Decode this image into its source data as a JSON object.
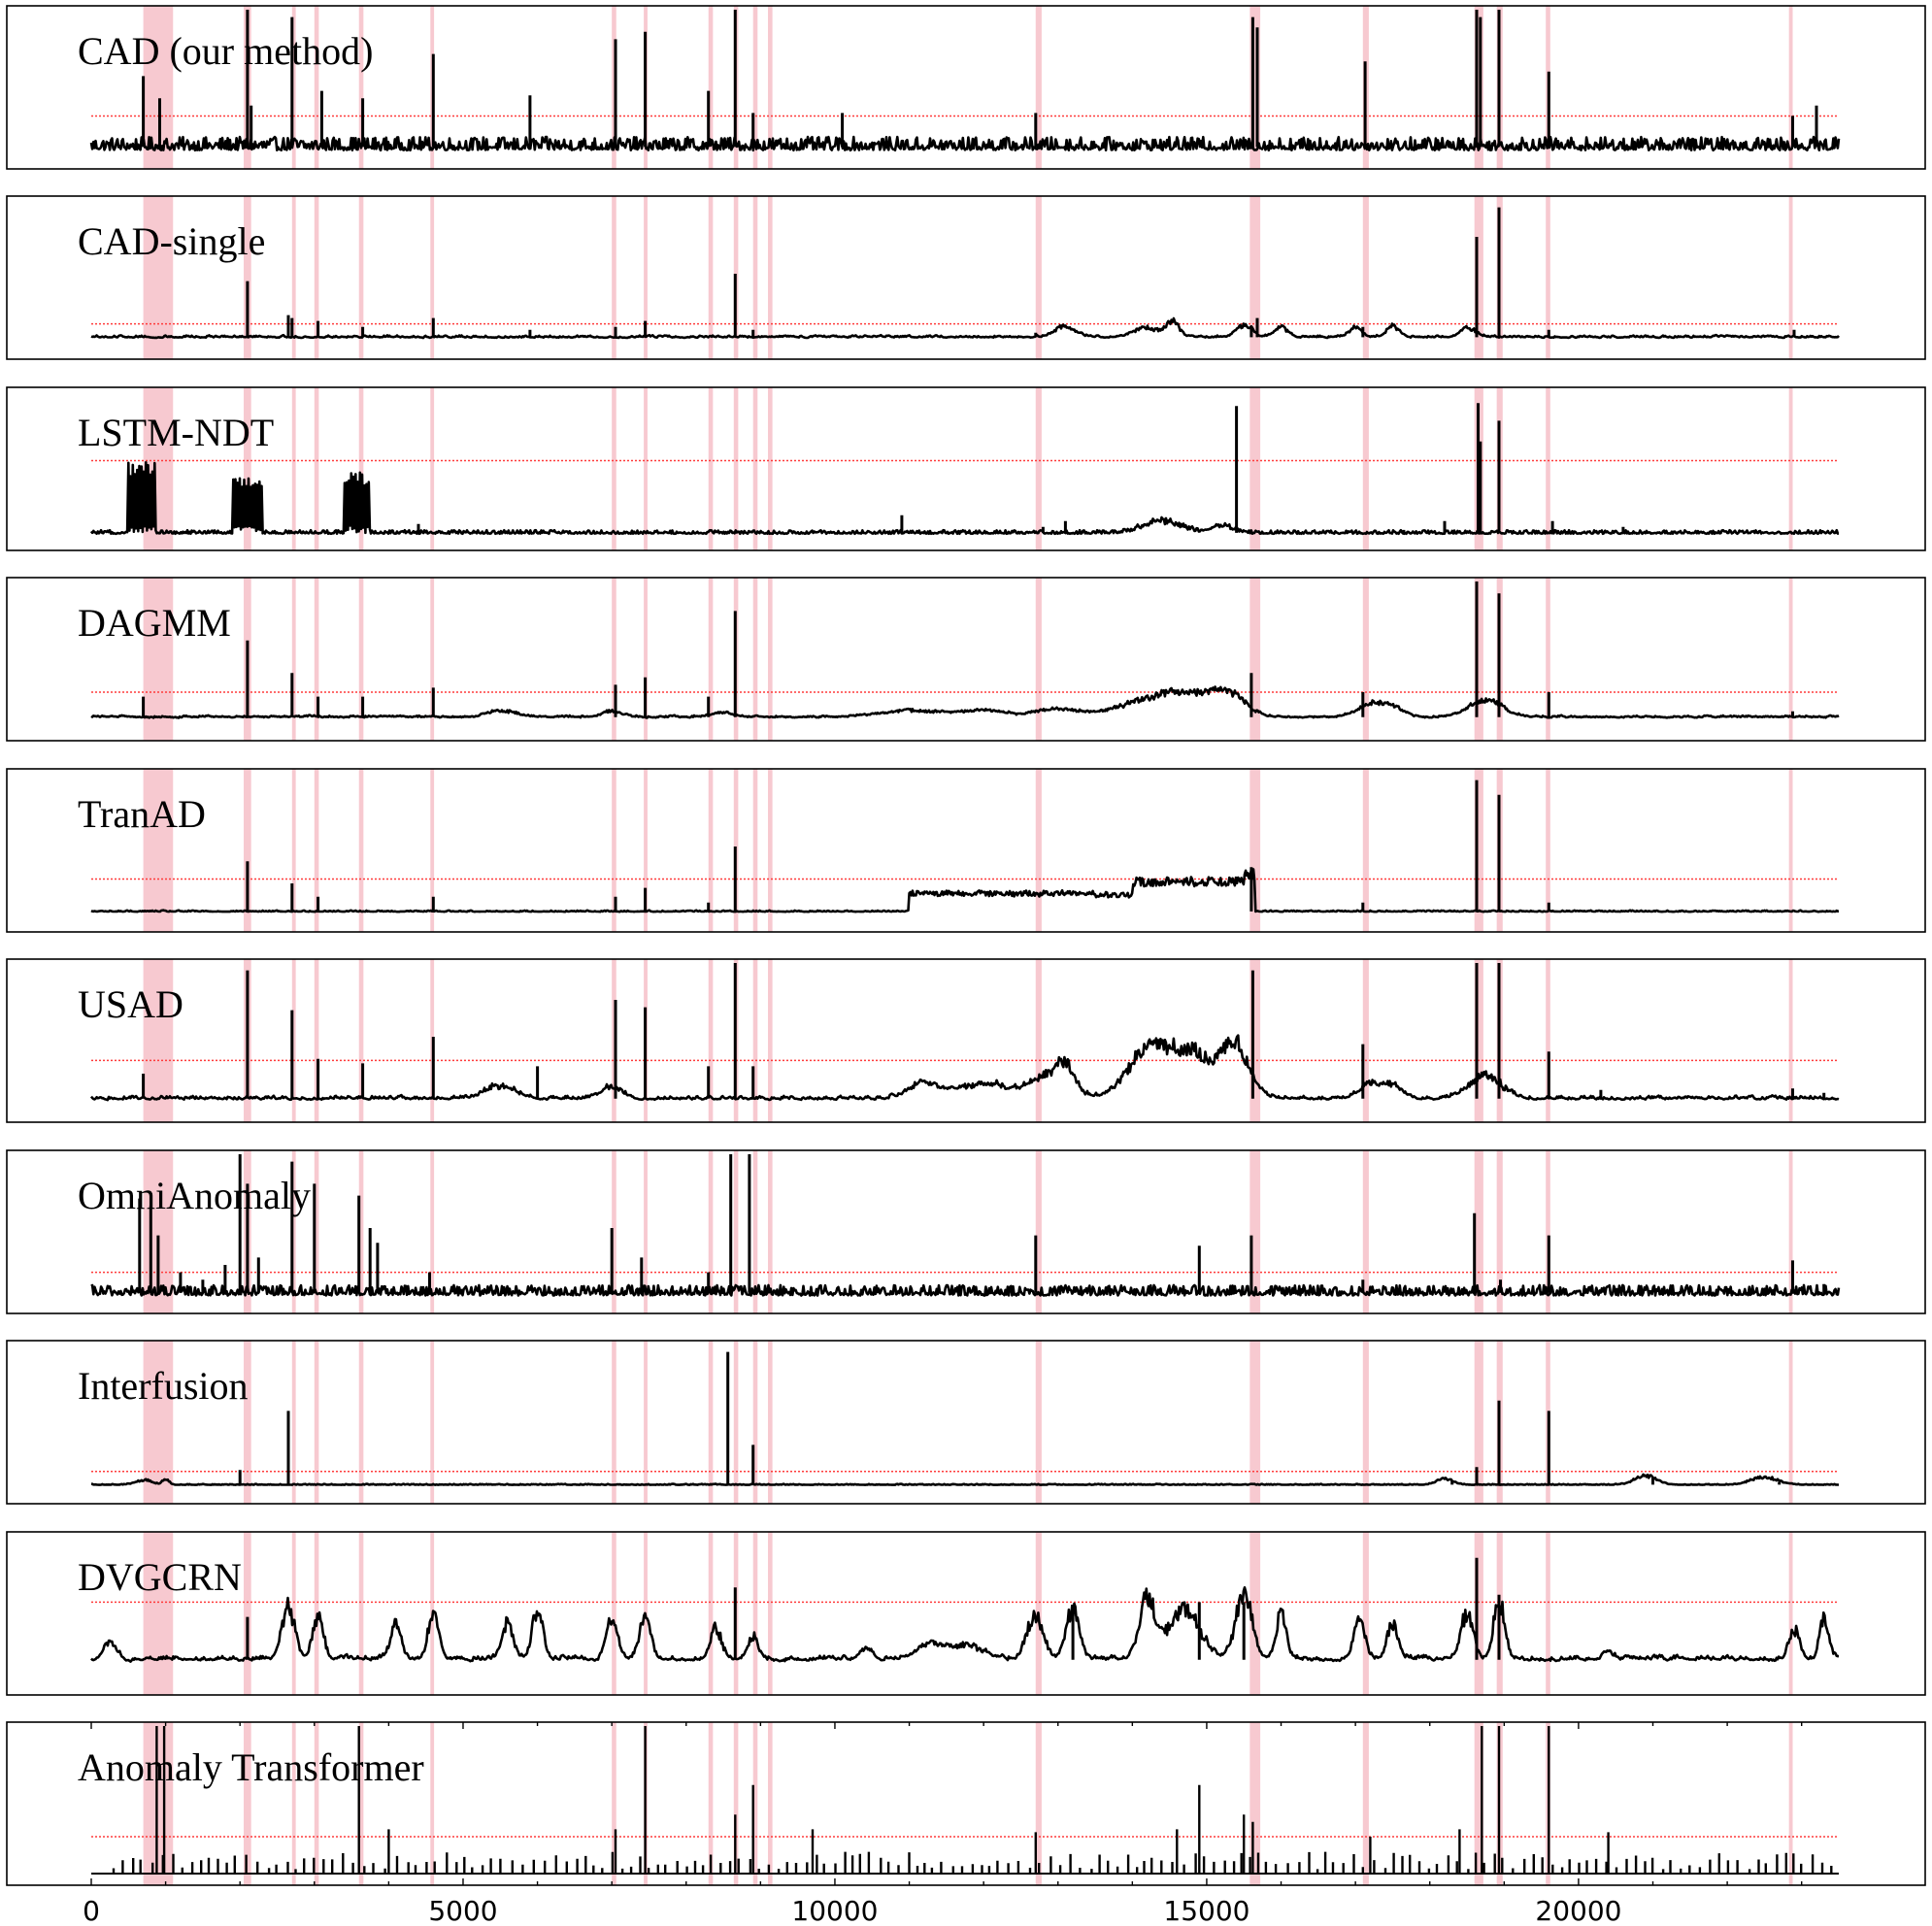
{
  "chart_data": {
    "type": "line",
    "x_range": [
      0,
      23500
    ],
    "x_ticks": [
      0,
      5000,
      10000,
      15000,
      20000
    ],
    "x_tick_labels": [
      "0",
      "5000",
      "10000",
      "15000",
      "20000"
    ],
    "y_range": [
      0,
      1
    ],
    "grid": false,
    "legend": "none",
    "colors": {
      "score": "#000000",
      "threshold": "#ff3b3b",
      "anomaly_band": "#f7c9d0"
    },
    "anomaly_intervals": [
      [
        700,
        1100
      ],
      [
        2050,
        2150
      ],
      [
        2700,
        2750
      ],
      [
        3000,
        3060
      ],
      [
        3600,
        3660
      ],
      [
        4560,
        4610
      ],
      [
        7000,
        7060
      ],
      [
        7430,
        7480
      ],
      [
        8300,
        8360
      ],
      [
        8640,
        8700
      ],
      [
        8900,
        8960
      ],
      [
        9100,
        9160
      ],
      [
        12700,
        12780
      ],
      [
        15580,
        15720
      ],
      [
        17100,
        17180
      ],
      [
        18600,
        18720
      ],
      [
        18900,
        18980
      ],
      [
        19560,
        19620
      ],
      [
        22830,
        22880
      ]
    ],
    "panels": [
      {
        "name": "CAD (our method)",
        "threshold": 0.28,
        "baseline": 0.07,
        "noise": 0.045,
        "smooth": 0.0,
        "spikes": [
          [
            700,
            0.55
          ],
          [
            920,
            0.4
          ],
          [
            2100,
            1.0
          ],
          [
            2150,
            0.35
          ],
          [
            2700,
            0.95
          ],
          [
            3100,
            0.45
          ],
          [
            3650,
            0.4
          ],
          [
            4600,
            0.7
          ],
          [
            5900,
            0.42
          ],
          [
            7050,
            0.8
          ],
          [
            7450,
            0.85
          ],
          [
            8300,
            0.45
          ],
          [
            8660,
            1.0
          ],
          [
            8900,
            0.3
          ],
          [
            10100,
            0.3
          ],
          [
            12700,
            0.3
          ],
          [
            15620,
            0.95
          ],
          [
            15680,
            0.88
          ],
          [
            17130,
            0.65
          ],
          [
            18630,
            1.0
          ],
          [
            18680,
            0.95
          ],
          [
            18930,
            1.0
          ],
          [
            19600,
            0.58
          ],
          [
            22880,
            0.28
          ],
          [
            23200,
            0.35
          ]
        ],
        "bumps": []
      },
      {
        "name": "CAD-single",
        "threshold": 0.16,
        "baseline": 0.07,
        "noise": 0.012,
        "smooth": 0.6,
        "spikes": [
          [
            2100,
            0.45
          ],
          [
            2650,
            0.22
          ],
          [
            2700,
            0.2
          ],
          [
            3050,
            0.18
          ],
          [
            3650,
            0.14
          ],
          [
            4600,
            0.2
          ],
          [
            5900,
            0.12
          ],
          [
            7050,
            0.14
          ],
          [
            7450,
            0.18
          ],
          [
            8660,
            0.5
          ],
          [
            8900,
            0.12
          ],
          [
            12700,
            0.1
          ],
          [
            15600,
            0.13
          ],
          [
            15680,
            0.2
          ],
          [
            17100,
            0.14
          ],
          [
            18630,
            0.75
          ],
          [
            18930,
            0.95
          ],
          [
            19600,
            0.12
          ],
          [
            22900,
            0.12
          ]
        ],
        "bumps": [
          [
            13100,
            0.07,
            200
          ],
          [
            14200,
            0.06,
            250
          ],
          [
            14550,
            0.1,
            120
          ],
          [
            15500,
            0.08,
            150
          ],
          [
            16000,
            0.07,
            120
          ],
          [
            17000,
            0.06,
            120
          ],
          [
            17500,
            0.07,
            120
          ],
          [
            18500,
            0.06,
            150
          ]
        ]
      },
      {
        "name": "LSTM-NDT",
        "threshold": 0.53,
        "baseline": 0.04,
        "noise": 0.012,
        "smooth": 0.0,
        "spikes": [
          [
            4400,
            0.1
          ],
          [
            10900,
            0.16
          ],
          [
            12800,
            0.08
          ],
          [
            13100,
            0.12
          ],
          [
            15400,
            0.9
          ],
          [
            17650,
            0.06
          ],
          [
            18200,
            0.12
          ],
          [
            18650,
            0.92
          ],
          [
            18680,
            0.66
          ],
          [
            18930,
            0.8
          ],
          [
            19650,
            0.12
          ],
          [
            20600,
            0.08
          ]
        ],
        "bumps": [
          [
            14400,
            0.08,
            350
          ],
          [
            15200,
            0.05,
            200
          ]
        ],
        "bursts": [
          [
            480,
            880,
            0.42,
            0.52
          ],
          [
            1900,
            2300,
            0.35,
            0.42
          ],
          [
            3400,
            3750,
            0.36,
            0.45
          ]
        ]
      },
      {
        "name": "DAGMM",
        "threshold": 0.25,
        "baseline": 0.08,
        "noise": 0.015,
        "smooth": 0.8,
        "spikes": [
          [
            700,
            0.22
          ],
          [
            2100,
            0.6
          ],
          [
            2700,
            0.38
          ],
          [
            3050,
            0.22
          ],
          [
            3650,
            0.22
          ],
          [
            4600,
            0.28
          ],
          [
            7050,
            0.3
          ],
          [
            7450,
            0.35
          ],
          [
            8300,
            0.22
          ],
          [
            8660,
            0.8
          ],
          [
            15600,
            0.38
          ],
          [
            17100,
            0.25
          ],
          [
            18630,
            1.0
          ],
          [
            18930,
            0.92
          ],
          [
            19600,
            0.25
          ],
          [
            22880,
            0.12
          ]
        ],
        "bumps": [
          [
            5500,
            0.04,
            250
          ],
          [
            7000,
            0.04,
            200
          ],
          [
            8500,
            0.03,
            200
          ],
          [
            11000,
            0.04,
            600
          ],
          [
            12000,
            0.04,
            500
          ],
          [
            13000,
            0.05,
            400
          ],
          [
            14200,
            0.1,
            600
          ],
          [
            14800,
            0.12,
            500
          ],
          [
            15300,
            0.13,
            300
          ],
          [
            17200,
            0.08,
            250
          ],
          [
            17500,
            0.06,
            200
          ],
          [
            18750,
            0.12,
            300
          ]
        ]
      },
      {
        "name": "TranAD",
        "threshold": 0.28,
        "baseline": 0.06,
        "noise": 0.006,
        "smooth": 0.4,
        "spikes": [
          [
            2100,
            0.4
          ],
          [
            2700,
            0.25
          ],
          [
            3050,
            0.16
          ],
          [
            4600,
            0.16
          ],
          [
            7050,
            0.16
          ],
          [
            7450,
            0.22
          ],
          [
            8300,
            0.12
          ],
          [
            8660,
            0.5
          ],
          [
            15600,
            0.36
          ],
          [
            17100,
            0.12
          ],
          [
            18630,
            0.95
          ],
          [
            18930,
            0.85
          ],
          [
            19600,
            0.12
          ]
        ],
        "bumps": [],
        "plateaus": [
          [
            11000,
            13500,
            0.12
          ],
          [
            13500,
            14000,
            0.11
          ],
          [
            14000,
            15500,
            0.2
          ],
          [
            15500,
            15650,
            0.25
          ]
        ]
      },
      {
        "name": "USAD",
        "threshold": 0.34,
        "baseline": 0.08,
        "noise": 0.02,
        "smooth": 0.6,
        "spikes": [
          [
            700,
            0.25
          ],
          [
            2100,
            0.95
          ],
          [
            2700,
            0.68
          ],
          [
            3050,
            0.35
          ],
          [
            3650,
            0.32
          ],
          [
            4600,
            0.5
          ],
          [
            6000,
            0.3
          ],
          [
            7050,
            0.75
          ],
          [
            7450,
            0.7
          ],
          [
            8300,
            0.3
          ],
          [
            8660,
            1.0
          ],
          [
            8900,
            0.3
          ],
          [
            15620,
            0.95
          ],
          [
            17100,
            0.45
          ],
          [
            18630,
            1.0
          ],
          [
            18930,
            1.0
          ],
          [
            19600,
            0.4
          ],
          [
            20300,
            0.14
          ],
          [
            22880,
            0.15
          ],
          [
            23300,
            0.12
          ]
        ],
        "bumps": [
          [
            5500,
            0.08,
            300
          ],
          [
            7000,
            0.08,
            200
          ],
          [
            11200,
            0.1,
            300
          ],
          [
            12000,
            0.1,
            500
          ],
          [
            12800,
            0.12,
            300
          ],
          [
            13100,
            0.2,
            200
          ],
          [
            14200,
            0.28,
            400
          ],
          [
            14800,
            0.28,
            500
          ],
          [
            15400,
            0.3,
            250
          ],
          [
            17200,
            0.1,
            200
          ],
          [
            17500,
            0.08,
            200
          ],
          [
            18750,
            0.15,
            300
          ]
        ]
      },
      {
        "name": "OmniAnomaly",
        "threshold": 0.2,
        "baseline": 0.06,
        "noise": 0.035,
        "smooth": 0.0,
        "spikes": [
          [
            650,
            0.7
          ],
          [
            800,
            0.65
          ],
          [
            900,
            0.45
          ],
          [
            1200,
            0.2
          ],
          [
            1500,
            0.15
          ],
          [
            1800,
            0.25
          ],
          [
            2000,
            1.0
          ],
          [
            2100,
            0.8
          ],
          [
            2250,
            0.3
          ],
          [
            2700,
            0.95
          ],
          [
            3000,
            0.8
          ],
          [
            3600,
            0.72
          ],
          [
            3750,
            0.5
          ],
          [
            3850,
            0.4
          ],
          [
            4550,
            0.2
          ],
          [
            7000,
            0.5
          ],
          [
            7400,
            0.3
          ],
          [
            8300,
            0.2
          ],
          [
            8600,
            1.0
          ],
          [
            8850,
            1.0
          ],
          [
            12700,
            0.45
          ],
          [
            14900,
            0.38
          ],
          [
            15600,
            0.45
          ],
          [
            17100,
            0.15
          ],
          [
            18600,
            0.6
          ],
          [
            18950,
            0.15
          ],
          [
            19600,
            0.45
          ],
          [
            22880,
            0.28
          ],
          [
            23300,
            0.12
          ]
        ],
        "bumps": []
      },
      {
        "name": "Interfusion",
        "threshold": 0.14,
        "baseline": 0.05,
        "noise": 0.004,
        "smooth": 0.3,
        "spikes": [
          [
            2000,
            0.15
          ],
          [
            2650,
            0.55
          ],
          [
            8560,
            0.95
          ],
          [
            8900,
            0.32
          ],
          [
            18300,
            0.08
          ],
          [
            18630,
            0.17
          ],
          [
            18930,
            0.62
          ],
          [
            19600,
            0.55
          ],
          [
            21000,
            0.1
          ],
          [
            22700,
            0.07
          ]
        ],
        "bumps": [
          [
            700,
            0.03,
            150
          ],
          [
            1000,
            0.04,
            60
          ],
          [
            18200,
            0.04,
            150
          ],
          [
            20900,
            0.06,
            200
          ],
          [
            22500,
            0.05,
            250
          ]
        ]
      },
      {
        "name": "DVGCRN",
        "threshold": 0.55,
        "baseline": 0.16,
        "noise": 0.03,
        "smooth": 0.7,
        "spikes": [
          [
            2100,
            0.45
          ],
          [
            8660,
            0.65
          ],
          [
            18630,
            0.85
          ],
          [
            18930,
            0.6
          ],
          [
            15500,
            0.55
          ],
          [
            14900,
            0.55
          ],
          [
            13200,
            0.5
          ]
        ],
        "bumps": [
          [
            250,
            0.12,
            120
          ],
          [
            2650,
            0.35,
            120
          ],
          [
            3050,
            0.3,
            100
          ],
          [
            4100,
            0.22,
            100
          ],
          [
            4600,
            0.3,
            100
          ],
          [
            5600,
            0.25,
            100
          ],
          [
            6000,
            0.35,
            100
          ],
          [
            7000,
            0.28,
            100
          ],
          [
            7450,
            0.3,
            100
          ],
          [
            8400,
            0.22,
            100
          ],
          [
            8900,
            0.15,
            100
          ],
          [
            10400,
            0.08,
            100
          ],
          [
            11300,
            0.1,
            300
          ],
          [
            11800,
            0.08,
            300
          ],
          [
            12700,
            0.3,
            150
          ],
          [
            13200,
            0.35,
            120
          ],
          [
            14200,
            0.4,
            150
          ],
          [
            14700,
            0.32,
            300
          ],
          [
            15500,
            0.45,
            150
          ],
          [
            16000,
            0.3,
            100
          ],
          [
            17050,
            0.28,
            100
          ],
          [
            17500,
            0.25,
            100
          ],
          [
            18500,
            0.3,
            120
          ],
          [
            18930,
            0.4,
            100
          ],
          [
            20400,
            0.06,
            100
          ],
          [
            22900,
            0.2,
            100
          ],
          [
            23300,
            0.28,
            80
          ]
        ]
      },
      {
        "name": "Anomaly Transformer",
        "threshold": 0.25,
        "baseline": 0.0,
        "noise": 0.0,
        "smooth": 0.0,
        "spikes": [
          [
            880,
            1.0
          ],
          [
            980,
            1.0
          ],
          [
            3600,
            1.0
          ],
          [
            4000,
            0.3
          ],
          [
            7450,
            1.0
          ],
          [
            7050,
            0.3
          ],
          [
            8660,
            0.4
          ],
          [
            8900,
            0.6
          ],
          [
            9700,
            0.3
          ],
          [
            12700,
            0.28
          ],
          [
            14600,
            0.3
          ],
          [
            14900,
            0.6
          ],
          [
            15500,
            0.4
          ],
          [
            15620,
            0.35
          ],
          [
            17200,
            0.25
          ],
          [
            18400,
            0.3
          ],
          [
            18700,
            1.0
          ],
          [
            18930,
            1.0
          ],
          [
            19600,
            1.0
          ],
          [
            20400,
            0.28
          ]
        ],
        "stems": true
      }
    ]
  }
}
